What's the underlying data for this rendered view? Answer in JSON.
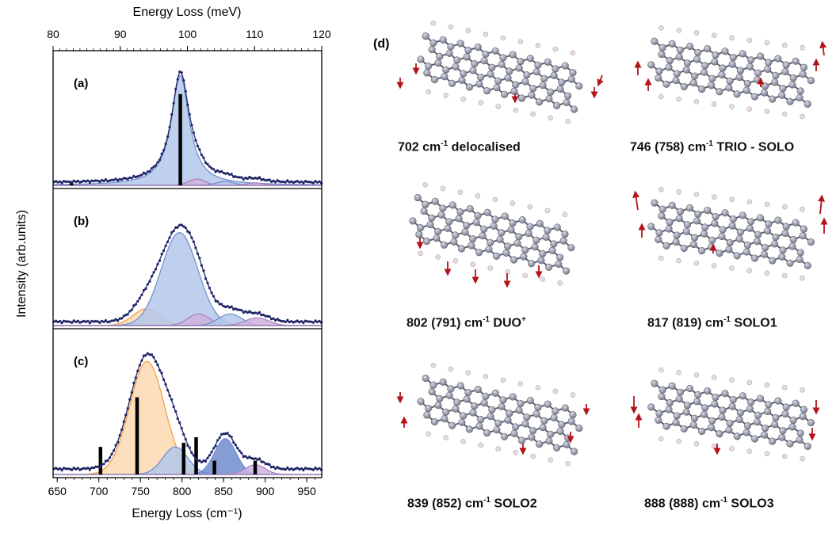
{
  "colors": {
    "data_points": "#1f2566",
    "fit_line": "#1f2566",
    "peak_blue": "#b3c8ea",
    "peak_blue_dark": "#6f8ccc",
    "peak_orange": "#fbd9b0",
    "peak_orange_edge": "#f39a3a",
    "peak_purple": "#cfb3dd",
    "bars": "#000000",
    "atom_carbon": "#7a7d8e",
    "atom_hydrogen": "#e8d8e8",
    "arrow": "#b3141a"
  },
  "chart_data": [
    {
      "type": "line",
      "panel_label": "(a)",
      "xlabel_top": "Energy Loss (meV)",
      "xlim_top": [
        80,
        120
      ],
      "top_ticks": [
        "80",
        "90",
        "100",
        "110",
        "120"
      ],
      "xlabel": "Energy Loss (cm⁻¹)",
      "xlim": [
        645,
        968
      ],
      "x_ticks": [
        "650",
        "700",
        "750",
        "800",
        "850",
        "900",
        "950"
      ],
      "ylabel": "Intensity (arb.units)",
      "baseline": 0.02,
      "bars": [
        {
          "x": 667,
          "h": 0.02
        },
        {
          "x": 798,
          "h": 0.72
        }
      ],
      "components": [
        {
          "center": 798,
          "amp": 0.87,
          "width": 13,
          "color": "blue",
          "shape": "lorentz"
        },
        {
          "center": 818,
          "amp": 0.05,
          "width": 10,
          "color": "purple",
          "shape": "gauss"
        },
        {
          "center": 852,
          "amp": 0.03,
          "width": 11,
          "color": "blue",
          "shape": "gauss"
        },
        {
          "center": 888,
          "amp": 0.02,
          "width": 10,
          "color": "purple",
          "shape": "gauss"
        }
      ]
    },
    {
      "type": "line",
      "panel_label": "(b)",
      "baseline": 0.03,
      "bars": [],
      "components": [
        {
          "center": 757,
          "amp": 0.13,
          "width": 16,
          "color": "orange",
          "shape": "gauss"
        },
        {
          "center": 797,
          "amp": 0.72,
          "width": 22,
          "color": "blue",
          "shape": "gauss"
        },
        {
          "center": 820,
          "amp": 0.09,
          "width": 13,
          "color": "purple",
          "shape": "gauss"
        },
        {
          "center": 858,
          "amp": 0.09,
          "width": 14,
          "color": "blue",
          "shape": "gauss"
        },
        {
          "center": 890,
          "amp": 0.06,
          "width": 14,
          "color": "purple",
          "shape": "gauss"
        }
      ]
    },
    {
      "type": "line",
      "panel_label": "(c)",
      "baseline": 0.04,
      "bars": [
        {
          "x": 702,
          "h": 0.2
        },
        {
          "x": 746,
          "h": 0.56
        },
        {
          "x": 802,
          "h": 0.23
        },
        {
          "x": 817,
          "h": 0.27
        },
        {
          "x": 839,
          "h": 0.1
        },
        {
          "x": 888,
          "h": 0.1
        }
      ],
      "components": [
        {
          "center": 758,
          "amp": 0.82,
          "width": 21,
          "color": "orange",
          "shape": "gauss"
        },
        {
          "center": 792,
          "amp": 0.2,
          "width": 15,
          "color": "blue",
          "shape": "gauss"
        },
        {
          "center": 852,
          "amp": 0.26,
          "width": 13,
          "color": "blue_dark",
          "shape": "gauss"
        },
        {
          "center": 888,
          "amp": 0.07,
          "width": 12,
          "color": "purple",
          "shape": "gauss"
        }
      ]
    }
  ],
  "panel_d": {
    "label": "(d)",
    "modes": [
      {
        "caption": "702 cm",
        "sup": "-1",
        "tail": "  delocalised"
      },
      {
        "caption": "746 (758) cm",
        "sup": "-1",
        "tail": "  TRIO - SOLO"
      },
      {
        "caption": "802 (791)  cm",
        "sup": "-1",
        "tail": "   DUO",
        "tail_sup": "+"
      },
      {
        "caption": "817 (819) cm",
        "sup": "-1",
        "tail": "  SOLO1"
      },
      {
        "caption": "839 (852) cm",
        "sup": "-1",
        "tail": "   SOLO2"
      },
      {
        "caption": "888  (888) cm",
        "sup": "-1",
        "tail": "   SOLO3"
      }
    ]
  }
}
